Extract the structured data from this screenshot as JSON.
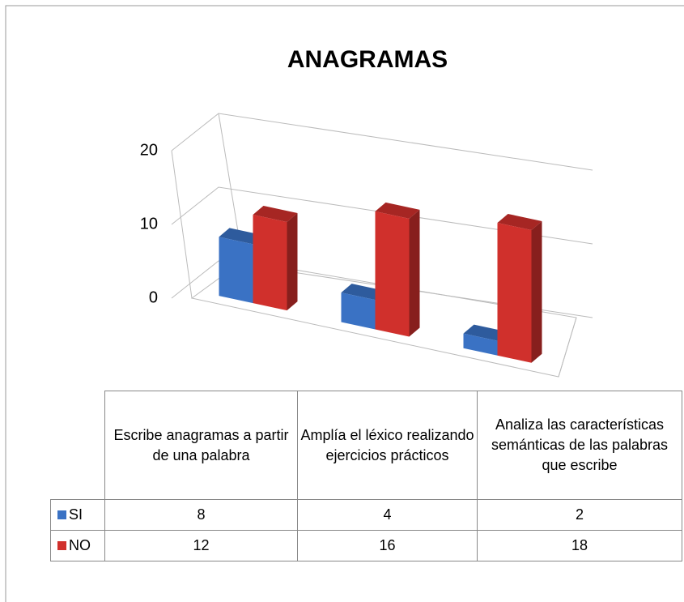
{
  "chart_data": {
    "type": "bar3d",
    "title": "ANAGRAMAS",
    "categories": [
      "Escribe anagramas a partir de una palabra",
      "Amplía el léxico realizando ejercicios prácticos",
      "Analiza las características semánticas de las palabras que escribe"
    ],
    "series": [
      {
        "name": "SI",
        "color": "#3a72c4",
        "values": [
          8,
          4,
          2
        ]
      },
      {
        "name": "NO",
        "color": "#d0302c",
        "values": [
          12,
          16,
          18
        ]
      }
    ],
    "ylim": [
      0,
      20
    ],
    "yticks": [
      0,
      10,
      20
    ],
    "grid": true
  }
}
